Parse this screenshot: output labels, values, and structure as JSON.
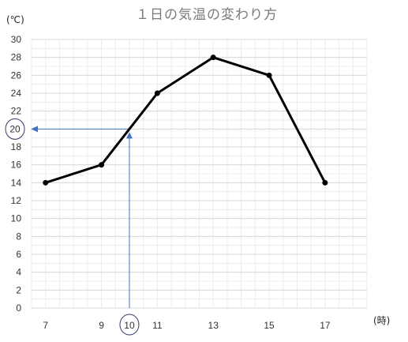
{
  "chart_data": {
    "type": "line",
    "title": "１日の気温の変わり方",
    "ylabel": "(℃)",
    "xlabel": "(時)",
    "ylim": [
      0,
      30
    ],
    "yticks": [
      0,
      2,
      4,
      6,
      8,
      10,
      12,
      14,
      16,
      18,
      20,
      22,
      24,
      26,
      28,
      30
    ],
    "xlim": [
      6.5,
      18.5
    ],
    "xticks": [
      7,
      9,
      10,
      11,
      13,
      15,
      17
    ],
    "grid": true,
    "series": [
      {
        "x": [
          7,
          9,
          11,
          13,
          15,
          17
        ],
        "values": [
          14,
          16,
          24,
          28,
          26,
          14
        ]
      }
    ],
    "annotations": {
      "circled_x": 10,
      "circled_y": 20,
      "read_point": {
        "x": 10,
        "y": 20
      }
    }
  },
  "colors": {
    "line": "#000000",
    "grid": "#d9d9d9",
    "arrow": "#4472c4",
    "circle": "#2f3b6b",
    "title": "#7a7a7a"
  }
}
